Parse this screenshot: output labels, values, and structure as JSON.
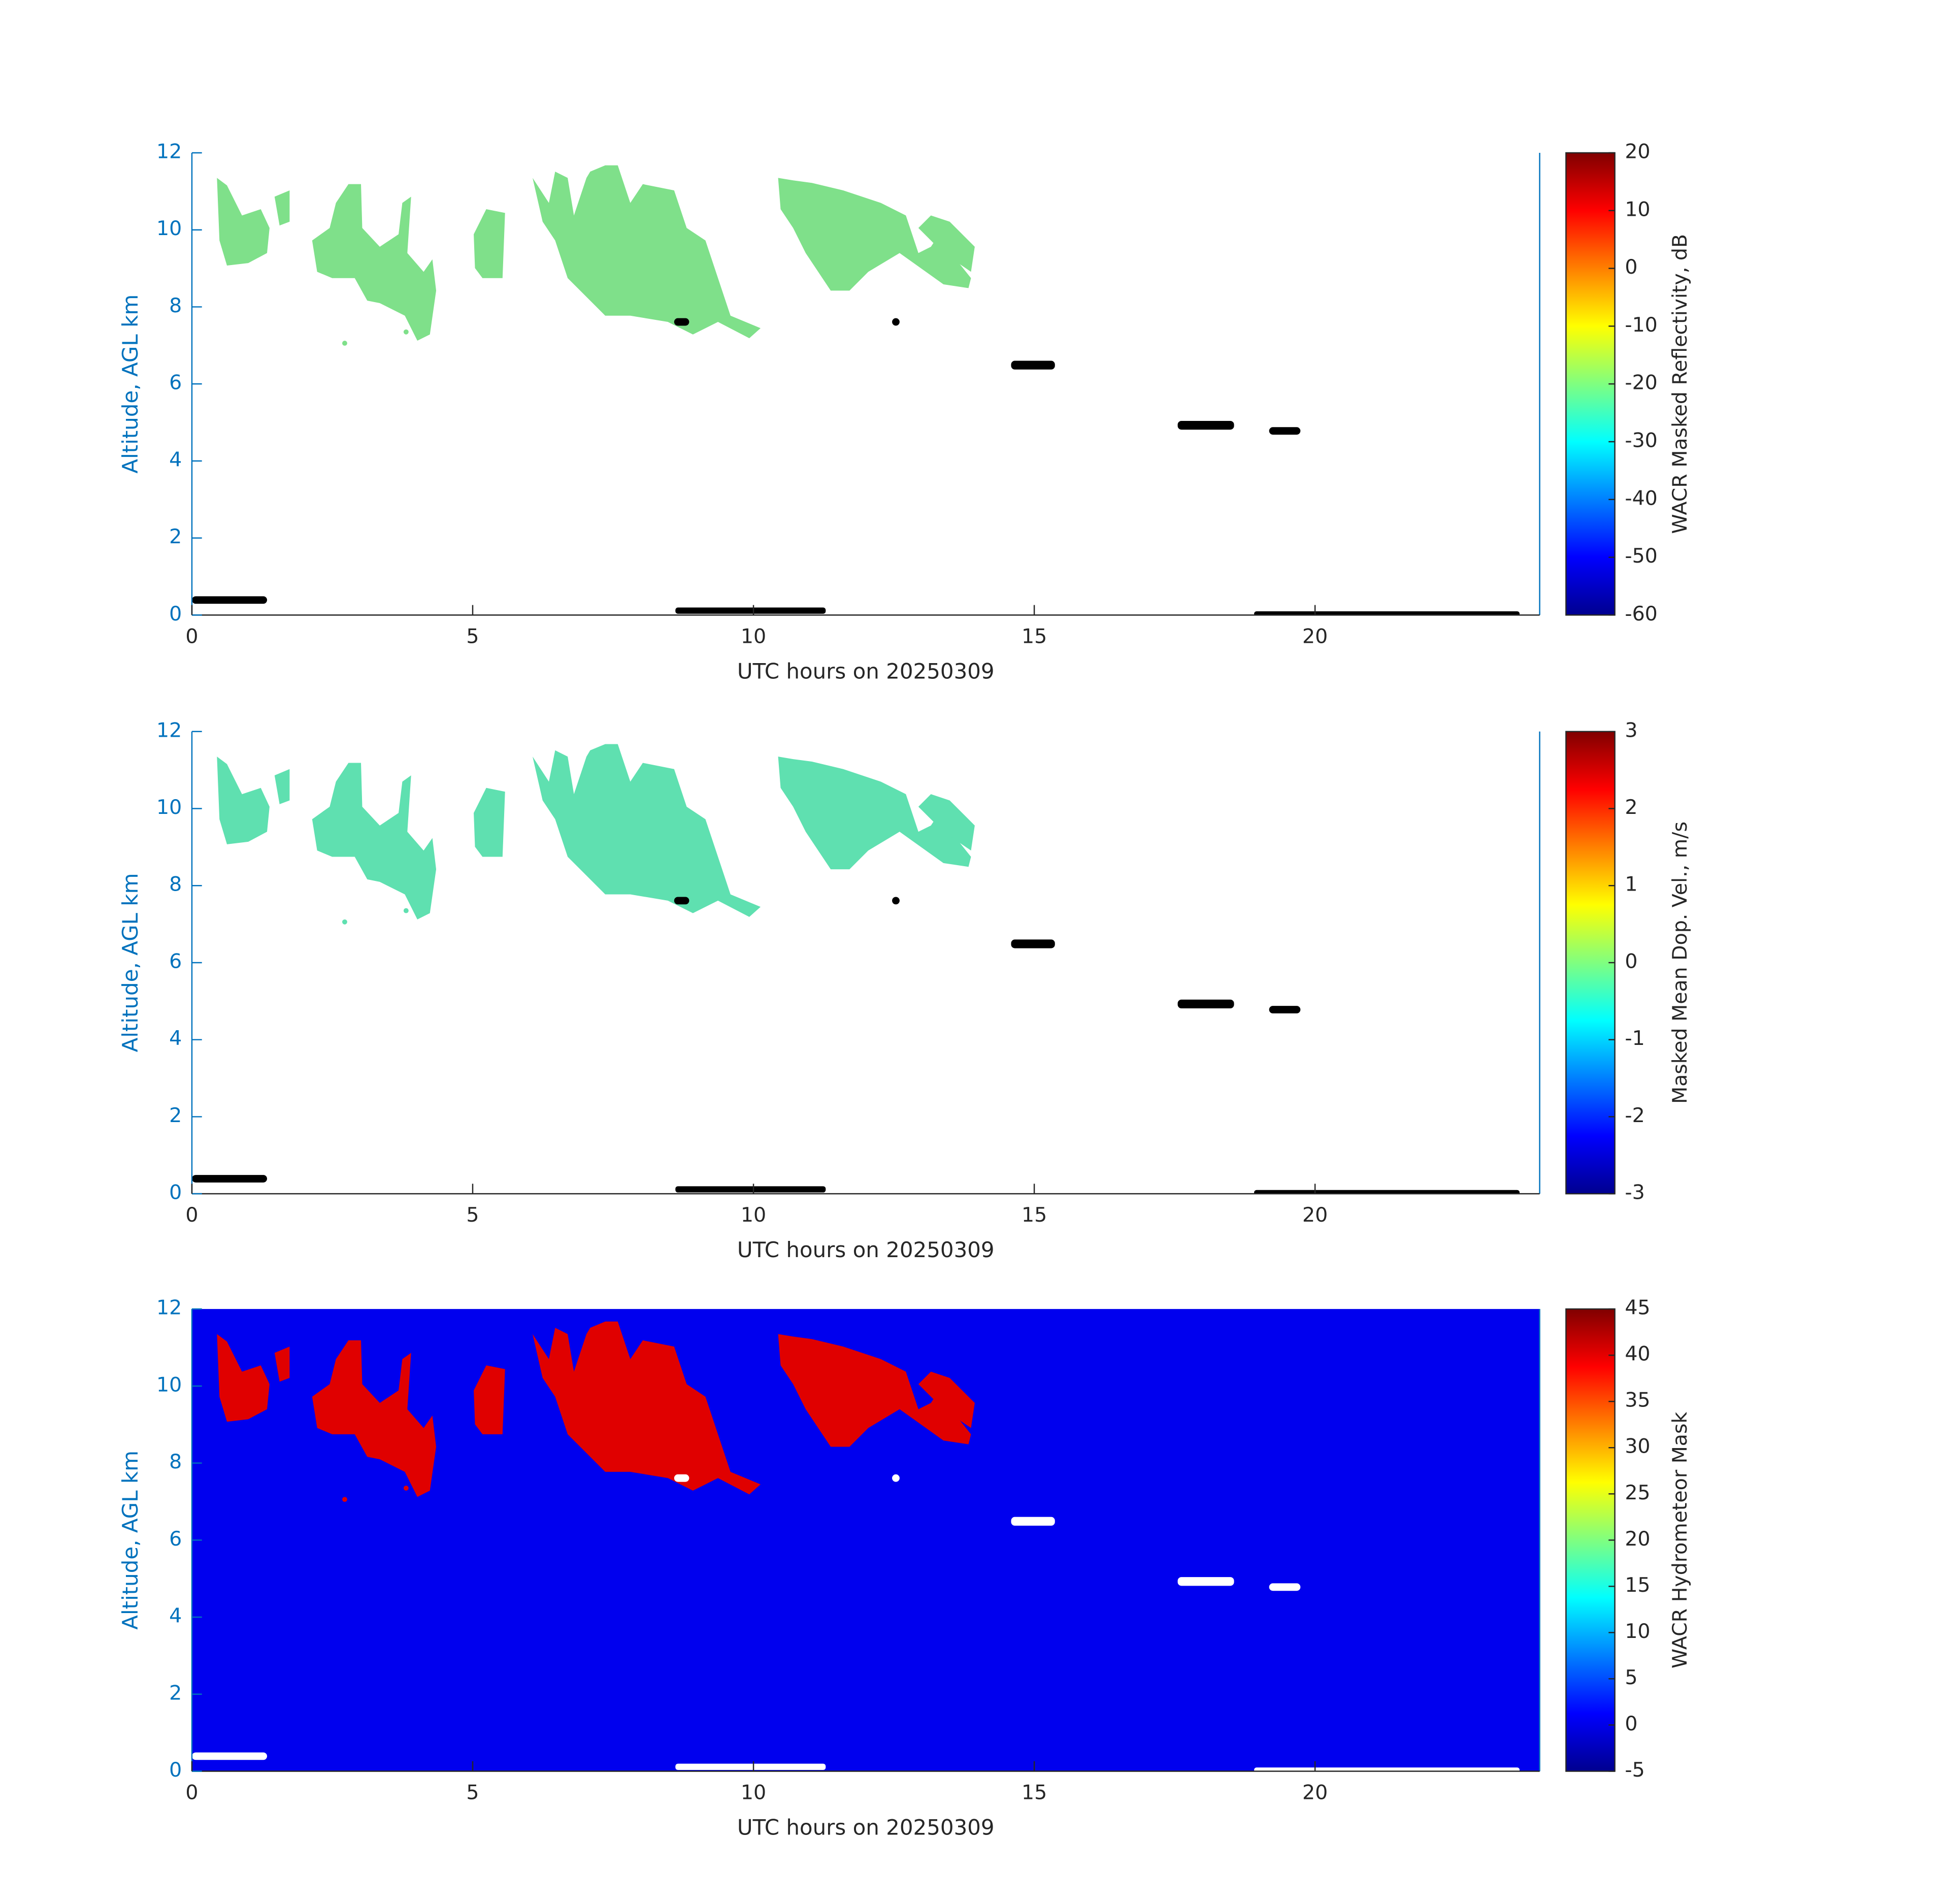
{
  "chart_data": [
    {
      "type": "heatmap",
      "xlabel": "UTC hours on 20250309",
      "ylabel": "Altitude, AGL km",
      "xlim": [
        0,
        24
      ],
      "xticks": [
        0,
        5,
        10,
        15,
        20
      ],
      "ylim": [
        0,
        12
      ],
      "yticks": [
        0,
        2,
        4,
        6,
        8,
        10,
        12
      ],
      "facecolor": "#ffffff",
      "colorbar_label": "WACR Masked Reflectivity, dB",
      "clim": [
        -60,
        20
      ],
      "cticks": [
        -60,
        -50,
        -40,
        -30,
        -20,
        -10,
        0,
        10,
        20
      ]
    },
    {
      "type": "heatmap",
      "xlabel": "UTC hours on 20250309",
      "ylabel": "Altitude, AGL km",
      "xlim": [
        0,
        24
      ],
      "xticks": [
        0,
        5,
        10,
        15,
        20
      ],
      "ylim": [
        0,
        12
      ],
      "yticks": [
        0,
        2,
        4,
        6,
        8,
        10,
        12
      ],
      "facecolor": "#ffffff",
      "colorbar_label": "Masked Mean Dop. Vel., m/s",
      "clim": [
        -3,
        3
      ],
      "cticks": [
        -3,
        -2,
        -1,
        0,
        1,
        2,
        3
      ]
    },
    {
      "type": "heatmap",
      "xlabel": "UTC hours on 20250309",
      "ylabel": "Altitude, AGL km",
      "xlim": [
        0,
        24
      ],
      "xticks": [
        0,
        5,
        10,
        15,
        20
      ],
      "ylim": [
        0,
        12
      ],
      "yticks": [
        0,
        2,
        4,
        6,
        8,
        10,
        12
      ],
      "facecolor": "#0000ee",
      "colorbar_label": "WACR Hydrometeor Mask",
      "clim": [
        -5,
        45
      ],
      "cticks": [
        -5,
        0,
        5,
        10,
        15,
        20,
        25,
        30,
        35,
        40,
        45
      ]
    }
  ]
}
